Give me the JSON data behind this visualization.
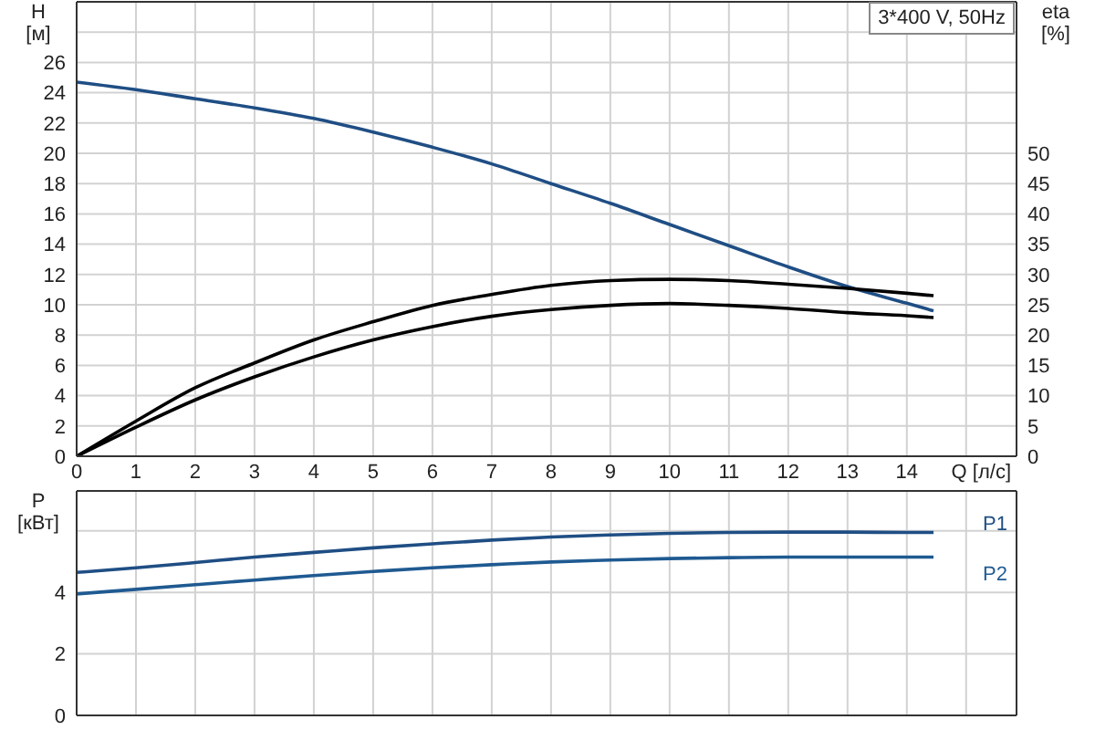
{
  "chart_data": [
    {
      "type": "line",
      "ylabel": "H [м]",
      "y2label": "eta [%]",
      "xlabel": "Q [л/с]",
      "annotations": [
        "3*400 V, 50Hz"
      ],
      "x": [
        0,
        1,
        2,
        3,
        4,
        5,
        6,
        7,
        8,
        9,
        10,
        11,
        12,
        13,
        14,
        14.45
      ],
      "xlim": [
        0,
        15.85
      ],
      "xticks": [
        0,
        1,
        2,
        3,
        4,
        5,
        6,
        7,
        8,
        9,
        10,
        11,
        12,
        13,
        14,
        {
          "value": 15,
          "label": null
        }
      ],
      "ylim": [
        0,
        30
      ],
      "yticks": [
        0,
        2,
        4,
        6,
        8,
        10,
        12,
        14,
        16,
        18,
        20,
        22,
        24,
        26,
        {
          "value": 28,
          "label": null
        }
      ],
      "y2lim": [
        0,
        75
      ],
      "y2ticks": [
        0,
        5,
        10,
        15,
        20,
        25,
        30,
        35,
        40,
        45,
        50
      ],
      "grid": true,
      "series": [
        {
          "color": "#1f4e84",
          "values": [
            24.7,
            24.2,
            23.6,
            23.0,
            22.3,
            21.4,
            20.4,
            19.3,
            18.0,
            16.7,
            15.3,
            13.9,
            12.5,
            11.2,
            10.1,
            9.6
          ]
        },
        {
          "color": "#000000",
          "axis": "y2",
          "values": [
            0,
            5.8,
            11.3,
            15.4,
            19.2,
            22.2,
            24.9,
            26.7,
            28.2,
            29.0,
            29.2,
            29.0,
            28.4,
            27.7,
            26.9,
            26.5
          ]
        },
        {
          "color": "#000000",
          "axis": "y2",
          "values": [
            0,
            4.8,
            9.3,
            13.1,
            16.4,
            19.2,
            21.4,
            23.1,
            24.2,
            24.9,
            25.2,
            24.9,
            24.4,
            23.7,
            23.2,
            22.9
          ]
        }
      ]
    },
    {
      "type": "line",
      "ylabel": "P [кВт]",
      "x": [
        0,
        1,
        2,
        3,
        4,
        5,
        6,
        7,
        8,
        9,
        10,
        11,
        12,
        13,
        14,
        14.45
      ],
      "xlim": [
        0,
        15.85
      ],
      "xticks": [
        0,
        1,
        2,
        3,
        4,
        5,
        6,
        7,
        8,
        9,
        10,
        11,
        12,
        13,
        14,
        15
      ],
      "ylim": [
        0,
        7.3
      ],
      "yticks": [
        0,
        2,
        4,
        {
          "value": 6,
          "label": null
        }
      ],
      "tick_labels": "y",
      "grid": true,
      "series": [
        {
          "name": "P1",
          "color": "#1f4e84",
          "values": [
            4.65,
            4.8,
            4.97,
            5.15,
            5.3,
            5.45,
            5.58,
            5.7,
            5.8,
            5.87,
            5.92,
            5.95,
            5.96,
            5.96,
            5.95,
            5.95
          ]
        },
        {
          "name": "P2",
          "color": "#1f5a91",
          "values": [
            3.95,
            4.1,
            4.25,
            4.4,
            4.55,
            4.68,
            4.8,
            4.9,
            4.99,
            5.05,
            5.1,
            5.13,
            5.15,
            5.15,
            5.15,
            5.15
          ]
        }
      ]
    }
  ]
}
